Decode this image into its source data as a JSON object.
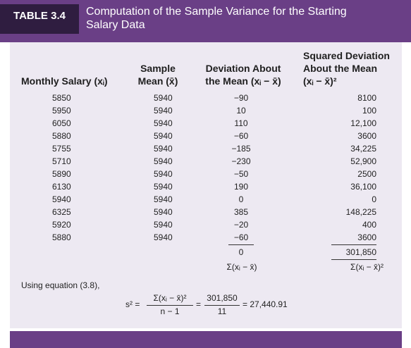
{
  "header": {
    "table_label": "TABLE 3.4",
    "title_line1": "Computation of the Sample Variance for the Starting",
    "title_line2": "Salary Data"
  },
  "columns": {
    "salary_header": "Monthly Salary (xᵢ)",
    "mean_header_line1": "Sample",
    "mean_header_line2": "Mean (x̄)",
    "dev_header_line1": "Deviation About",
    "dev_header_line2": "the Mean (xᵢ − x̄)",
    "sq_header_line1": "Squared Deviation",
    "sq_header_line2": "About the Mean",
    "sq_header_line3": "(xᵢ − x̄)²"
  },
  "rows": [
    {
      "salary": "5850",
      "mean": "5940",
      "dev": "−90",
      "sq": "8100"
    },
    {
      "salary": "5950",
      "mean": "5940",
      "dev": "10",
      "sq": "100"
    },
    {
      "salary": "6050",
      "mean": "5940",
      "dev": "110",
      "sq": "12,100"
    },
    {
      "salary": "5880",
      "mean": "5940",
      "dev": "−60",
      "sq": "3600"
    },
    {
      "salary": "5755",
      "mean": "5940",
      "dev": "−185",
      "sq": "34,225"
    },
    {
      "salary": "5710",
      "mean": "5940",
      "dev": "−230",
      "sq": "52,900"
    },
    {
      "salary": "5890",
      "mean": "5940",
      "dev": "−50",
      "sq": "2500"
    },
    {
      "salary": "6130",
      "mean": "5940",
      "dev": "190",
      "sq": "36,100"
    },
    {
      "salary": "5940",
      "mean": "5940",
      "dev": "0",
      "sq": "0"
    },
    {
      "salary": "6325",
      "mean": "5940",
      "dev": "385",
      "sq": "148,225"
    },
    {
      "salary": "5920",
      "mean": "5940",
      "dev": "−20",
      "sq": "400"
    },
    {
      "salary": "5880",
      "mean": "5940",
      "dev": "−60",
      "sq": "3600"
    }
  ],
  "totals": {
    "dev_total": "0",
    "sq_total": "301,850",
    "dev_sum_label": "Σ(xᵢ − x̄)",
    "sq_sum_label": "Σ(xᵢ − x̄)²"
  },
  "equation": {
    "intro": "Using equation (3.8),",
    "lhs": "s² =",
    "frac1_num": "Σ(xᵢ − x̄)²",
    "frac1_den": "n − 1",
    "eq1": "=",
    "frac2_num": "301,850",
    "frac2_den": "11",
    "result": "= 27,440.91"
  },
  "colors": {
    "header_bg": "#6a3f86",
    "label_bg": "#2f1d40",
    "panel_bg": "#ede9f2"
  }
}
